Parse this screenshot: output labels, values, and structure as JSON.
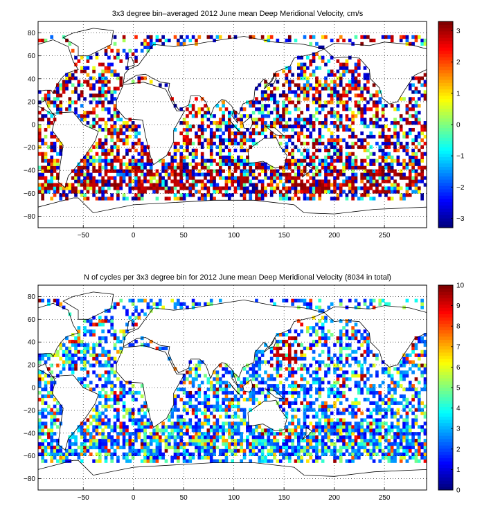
{
  "figure": {
    "panels": [
      {
        "title": "3x3 degree bin–averaged 2012 June mean Deep Meridional Velocity, cm/s",
        "colorbar_ticks": [
          "3",
          "2",
          "1",
          "0",
          "−1",
          "−2",
          "−3"
        ]
      },
      {
        "title": "N of cycles per 3x3 degree bin for 2012 June mean Deep Meridional Velocity (8034 in total)",
        "colorbar_ticks": [
          "10",
          "9",
          "8",
          "7",
          "6",
          "5",
          "4",
          "3",
          "2",
          "1",
          "0"
        ]
      }
    ],
    "x_ticks": [
      "−50",
      "0",
      "50",
      "100",
      "150",
      "200",
      "250"
    ],
    "y_ticks": [
      "80",
      "60",
      "40",
      "20",
      "0",
      "−20",
      "−40",
      "−60",
      "−80"
    ]
  },
  "chart_data": [
    {
      "type": "heatmap",
      "title": "3x3 degree bin–averaged 2012 June mean Deep Meridional Velocity, cm/s",
      "xlabel": "",
      "ylabel": "",
      "xlim": [
        -95,
        292
      ],
      "ylim": [
        -90,
        90
      ],
      "x_ticks": [
        -50,
        0,
        50,
        100,
        150,
        200,
        250
      ],
      "y_ticks": [
        -80,
        -60,
        -40,
        -20,
        0,
        20,
        40,
        60,
        80
      ],
      "bin_size_deg": 3,
      "colormap": "jet",
      "clim": [
        -3.3,
        3.3
      ],
      "colorbar_ticks": [
        -3,
        -2,
        -1,
        0,
        1,
        2,
        3
      ],
      "colorbar_unit": "cm/s",
      "grid": "dotted",
      "background": "world coastline map"
    },
    {
      "type": "heatmap",
      "title": "N of cycles per 3x3 degree bin for 2012 June mean Deep Meridional Velocity (8034 in total)",
      "xlabel": "",
      "ylabel": "",
      "xlim": [
        -95,
        292
      ],
      "ylim": [
        -90,
        90
      ],
      "x_ticks": [
        -50,
        0,
        50,
        100,
        150,
        200,
        250
      ],
      "y_ticks": [
        -80,
        -60,
        -40,
        -20,
        0,
        20,
        40,
        60,
        80
      ],
      "bin_size_deg": 3,
      "colormap": "jet",
      "clim": [
        0,
        10
      ],
      "colorbar_ticks": [
        0,
        1,
        2,
        3,
        4,
        5,
        6,
        7,
        8,
        9,
        10
      ],
      "total_cycles": 8034,
      "grid": "dotted",
      "background": "world coastline map"
    }
  ]
}
